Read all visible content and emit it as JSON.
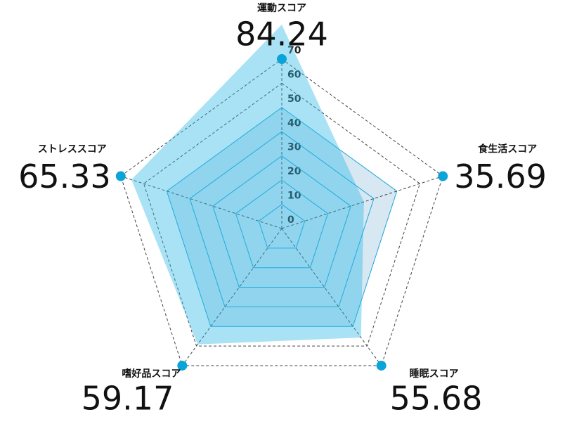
{
  "chart_data": {
    "type": "radar",
    "categories": [
      "運動スコア",
      "食生活スコア",
      "睡眠スコア",
      "嗜好品スコア",
      "ストレススコア"
    ],
    "values": [
      84.24,
      35.69,
      55.68,
      59.17,
      65.33
    ],
    "color": "#29b6e6",
    "rlim": [
      0,
      70
    ],
    "rticks": [
      0,
      10,
      20,
      30,
      40,
      50,
      60,
      70
    ]
  }
}
